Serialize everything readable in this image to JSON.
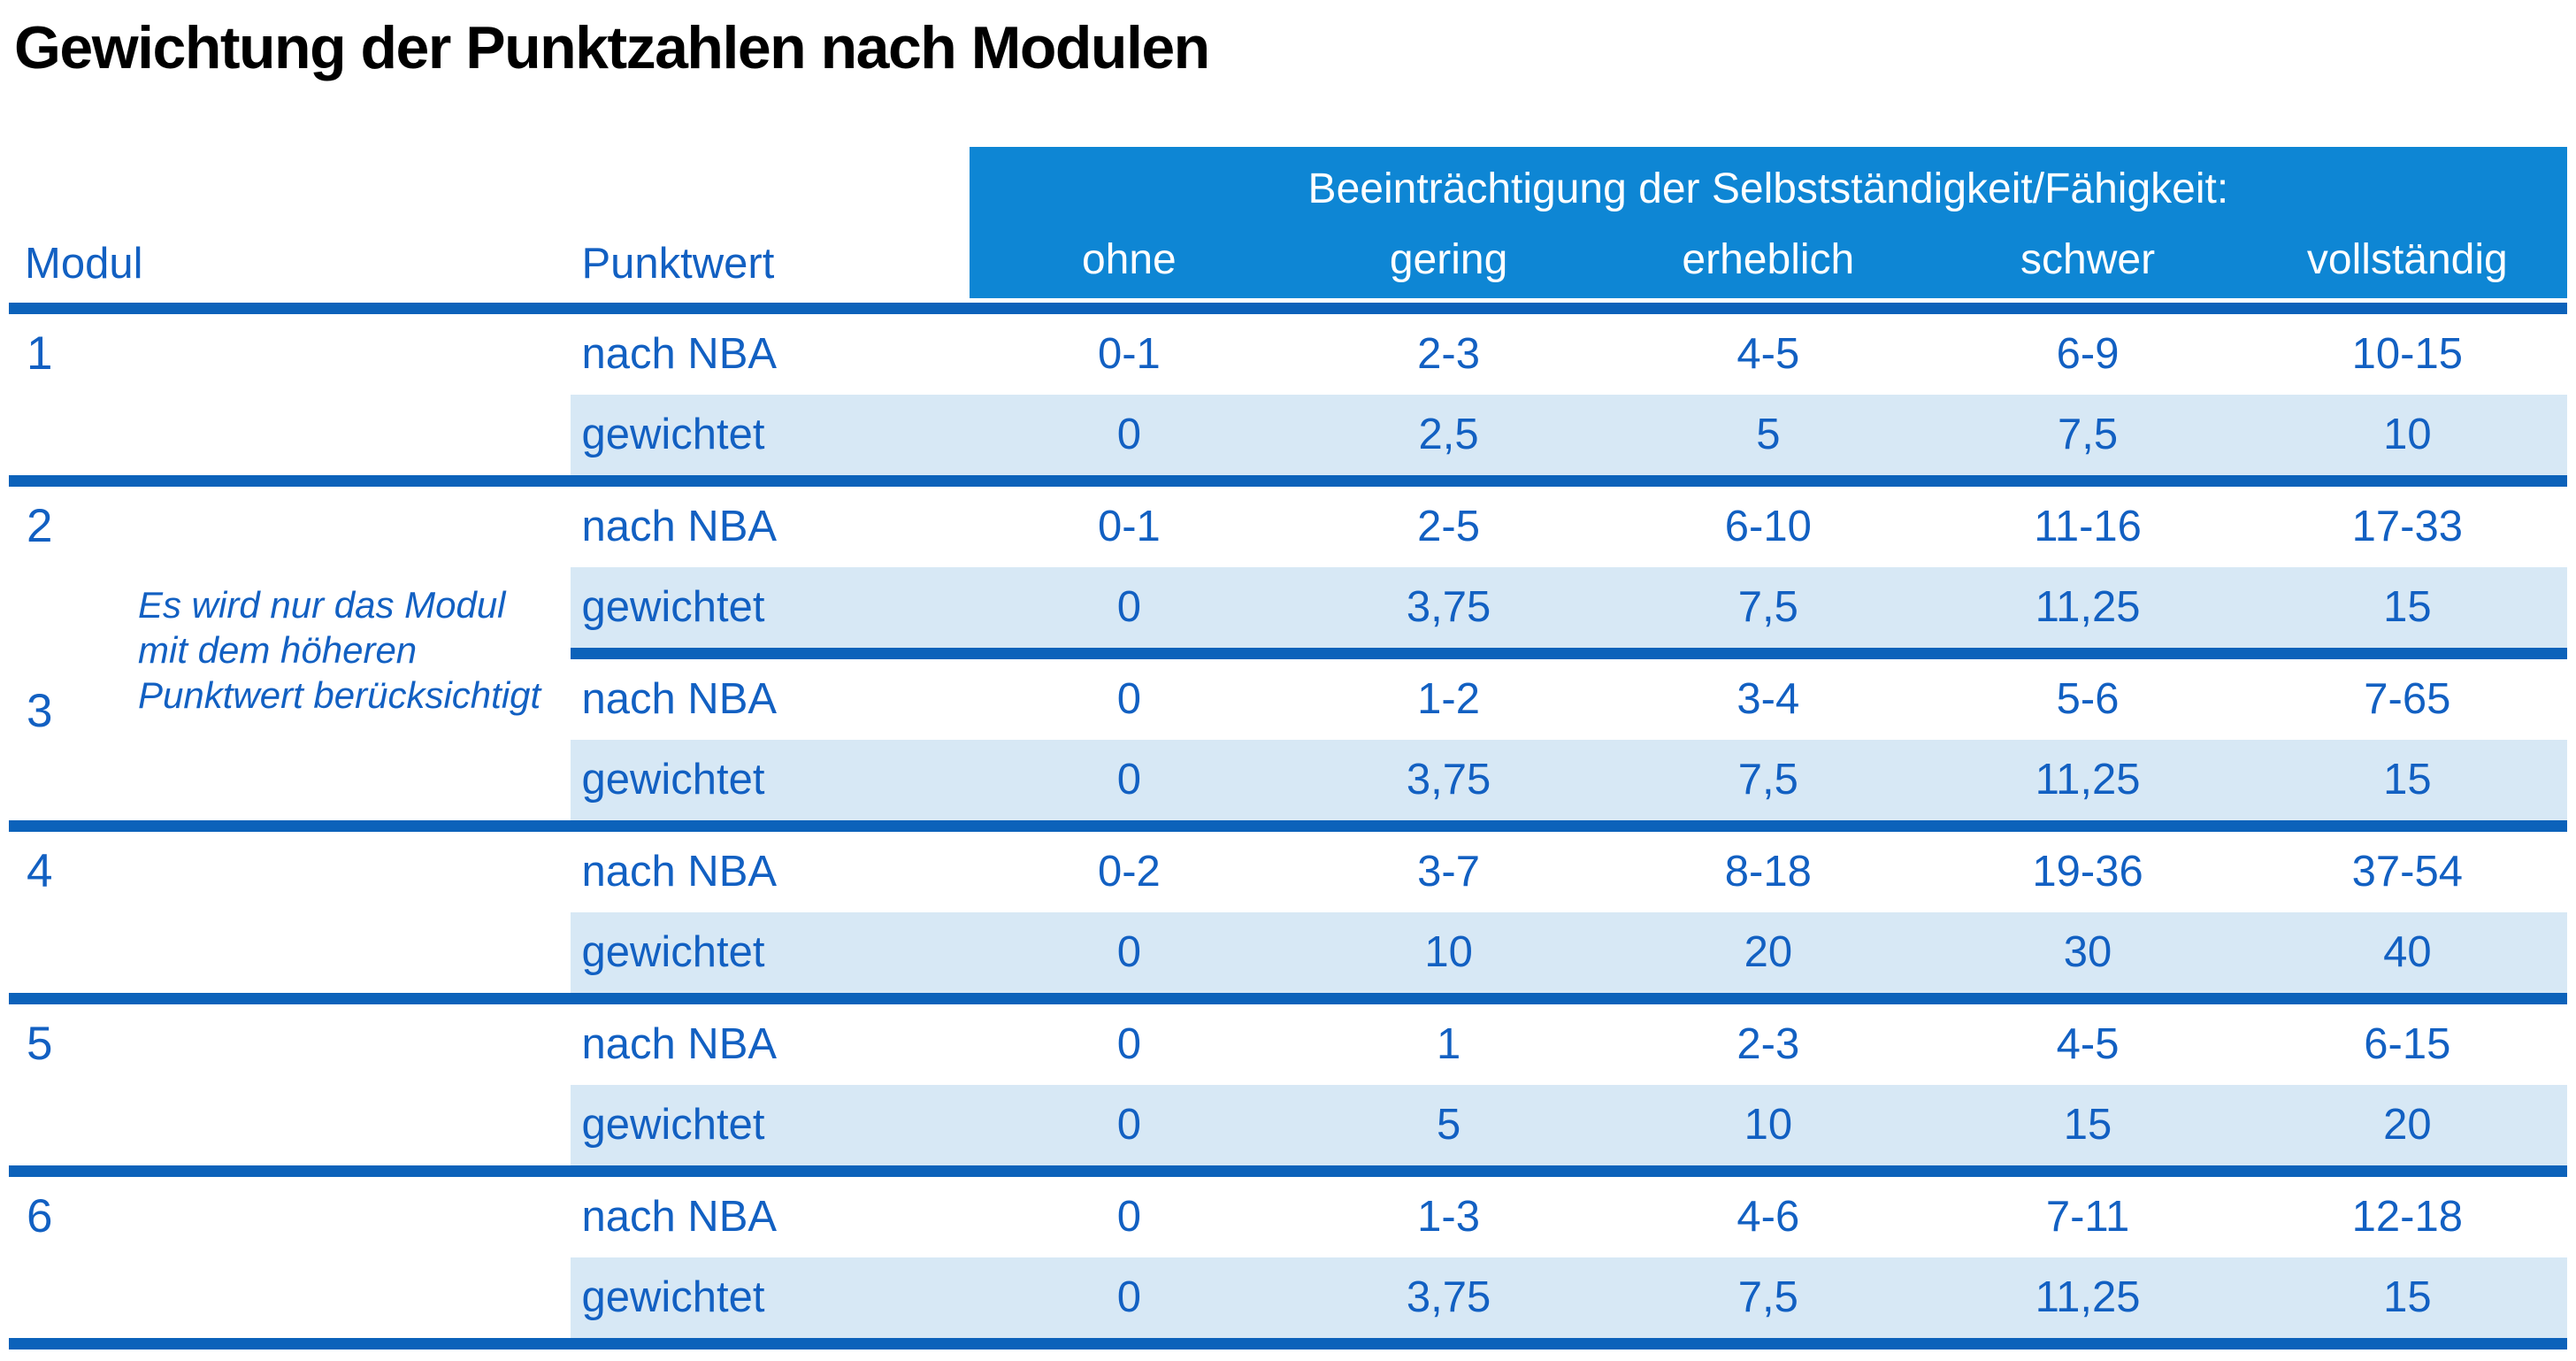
{
  "title": "Gewichtung der Punktzahlen nach Modulen",
  "colors": {
    "band": "#0e86d4",
    "line": "#0c62ba",
    "textblue": "#1260c2",
    "rowbg": "#d7e8f5",
    "titlecolor": "#000000",
    "pagebg": "#ffffff"
  },
  "table": {
    "col_headers": {
      "modul": "Modul",
      "punktwert": "Punktwert",
      "group_header": "Beeinträchtigung der Selbstständigkeit/Fähigkeit:",
      "severity_levels": [
        "ohne",
        "gering",
        "erheblich",
        "schwer",
        "vollständig"
      ]
    },
    "row_labels": {
      "nach_nba": "nach NBA",
      "gewichtet": "gewichtet"
    },
    "note": "Es wird nur das Modul\nmit dem höheren\nPunktwert berücksichtigt",
    "modules": [
      {
        "nr": "1",
        "nach_nba": [
          "0-1",
          "2-3",
          "4-5",
          "6-9",
          "10-15"
        ],
        "gewichtet": [
          "0",
          "2,5",
          "5",
          "7,5",
          "10"
        ]
      },
      {
        "nr": "2",
        "nach_nba": [
          "0-1",
          "2-5",
          "6-10",
          "11-16",
          "17-33"
        ],
        "gewichtet": [
          "0",
          "3,75",
          "7,5",
          "11,25",
          "15"
        ]
      },
      {
        "nr": "3",
        "nach_nba": [
          "0",
          "1-2",
          "3-4",
          "5-6",
          "7-65"
        ],
        "gewichtet": [
          "0",
          "3,75",
          "7,5",
          "11,25",
          "15"
        ]
      },
      {
        "nr": "4",
        "nach_nba": [
          "0-2",
          "3-7",
          "8-18",
          "19-36",
          "37-54"
        ],
        "gewichtet": [
          "0",
          "10",
          "20",
          "30",
          "40"
        ]
      },
      {
        "nr": "5",
        "nach_nba": [
          "0",
          "1",
          "2-3",
          "4-5",
          "6-15"
        ],
        "gewichtet": [
          "0",
          "5",
          "10",
          "15",
          "20"
        ]
      },
      {
        "nr": "6",
        "nach_nba": [
          "0",
          "1-3",
          "4-6",
          "7-11",
          "12-18"
        ],
        "gewichtet": [
          "0",
          "3,75",
          "7,5",
          "11,25",
          "15"
        ]
      }
    ]
  }
}
